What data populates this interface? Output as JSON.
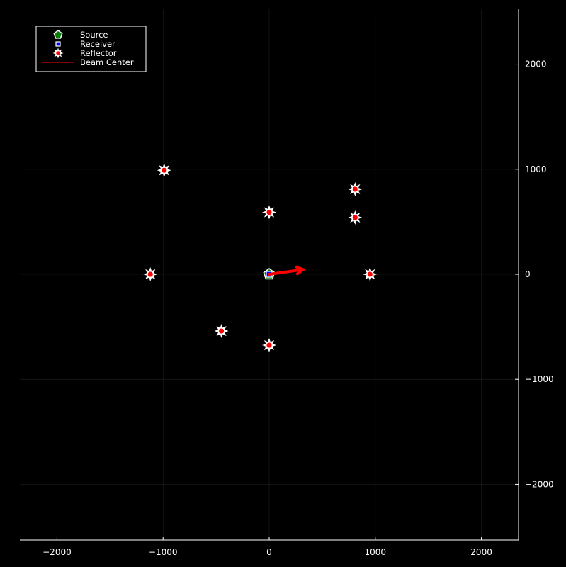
{
  "chart_data": {
    "type": "scatter",
    "title": "",
    "xlabel": "",
    "ylabel": "",
    "xlim": [
      -2350,
      2350
    ],
    "ylim": [
      -2530,
      2530
    ],
    "xticks": [
      -2000,
      -1000,
      0,
      1000,
      2000
    ],
    "yticks": [
      -2000,
      -1000,
      0,
      1000,
      2000
    ],
    "xtick_labels": [
      "−2000",
      "−1000",
      "0",
      "1000",
      "2000"
    ],
    "ytick_labels": [
      "−2000",
      "−1000",
      "0",
      "1000",
      "2000"
    ],
    "grid": true,
    "background": "#000000",
    "axis_color": "#ffffff",
    "legend_position": "top-left",
    "series": [
      {
        "name": "Source",
        "marker": "pentagon",
        "color": "#008000",
        "points": [
          [
            0,
            0
          ]
        ]
      },
      {
        "name": "Receiver",
        "marker": "square",
        "color": "#0000ff",
        "points": [
          [
            0,
            0
          ]
        ]
      },
      {
        "name": "Reflector",
        "marker": "star8",
        "color": "#ff0000",
        "points": [
          [
            -990,
            990
          ],
          [
            0,
            590
          ],
          [
            810,
            810
          ],
          [
            810,
            540
          ],
          [
            -1120,
            0
          ],
          [
            950,
            0
          ],
          [
            -450,
            -540
          ],
          [
            0,
            -675
          ]
        ]
      },
      {
        "name": "Beam Center",
        "marker": "line",
        "color": "#ff0000",
        "segment": [
          [
            0,
            0
          ],
          [
            320,
            45
          ]
        ]
      }
    ]
  }
}
